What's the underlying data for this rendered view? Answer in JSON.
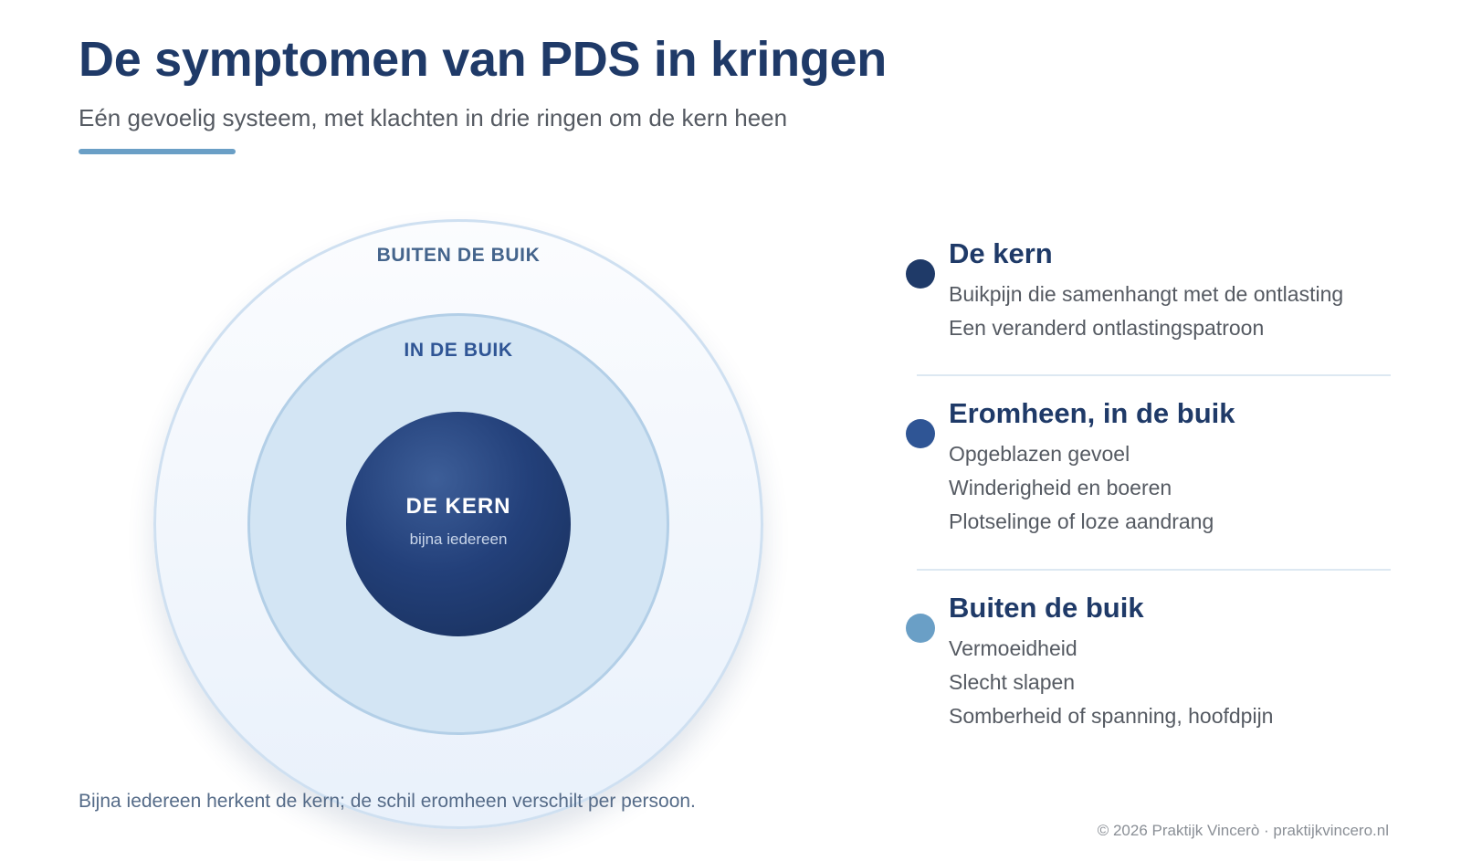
{
  "header": {
    "title": "De symptomen van PDS in kringen",
    "subtitle": "Eén gevoelig systeem, met klachten in drie ringen om de kern heen"
  },
  "diagram": {
    "outer_ring_label": "BUITEN DE BUIK",
    "middle_ring_label": "IN DE BUIK",
    "core_label": "DE KERN",
    "core_sublabel": "bijna iedereen",
    "colors": {
      "core": "#1f3a68",
      "middle": "#2f5595",
      "outer": "#6a9fc6"
    }
  },
  "legend": {
    "groups": [
      {
        "title": "De kern",
        "dot_color": "#1f3a68",
        "items": [
          "Buikpijn die samenhangt met de ontlasting",
          "Een veranderd ontlastingspatroon"
        ]
      },
      {
        "title": "Eromheen, in de buik",
        "dot_color": "#2f5595",
        "items": [
          "Opgeblazen gevoel",
          "Winderigheid en boeren",
          "Plotselinge of loze aandrang"
        ]
      },
      {
        "title": "Buiten de buik",
        "dot_color": "#6a9fc6",
        "items": [
          "Vermoeidheid",
          "Slecht slapen",
          "Somberheid of spanning, hoofdpijn"
        ]
      }
    ]
  },
  "footer": {
    "note": "Bijna iedereen herkent de kern; de schil eromheen verschilt per persoon.",
    "copyright": "© 2026 Praktijk Vincerò · praktijkvincero.nl"
  }
}
